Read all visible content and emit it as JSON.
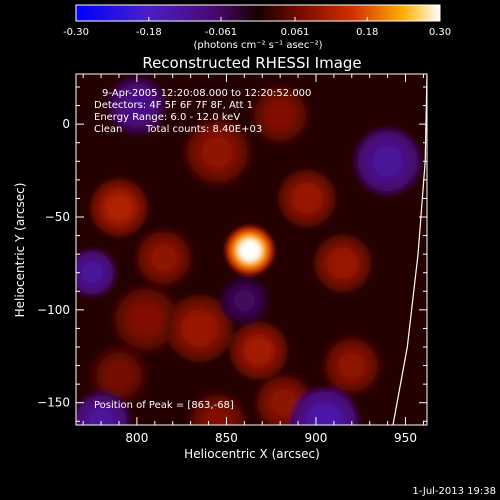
{
  "colorbar": {
    "tick_labels": [
      "-0.30",
      "-0.18",
      "-0.061",
      "0.061",
      "0.18",
      "0.30"
    ],
    "ticks": [
      -0.3,
      -0.18,
      -0.061,
      0.061,
      0.18,
      0.3
    ],
    "range": [
      -0.3,
      0.3
    ],
    "units": "(photons cm⁻² s⁻¹ asec⁻²)"
  },
  "chart_data": {
    "type": "heatmap",
    "title": "Reconstructed RHESSI Image",
    "xlabel": "Heliocentric X (arcsec)",
    "ylabel": "Heliocentric Y (arcsec)",
    "xlim": [
      766,
      962
    ],
    "ylim": [
      -162,
      27
    ],
    "x_ticks": [
      800,
      850,
      900,
      950
    ],
    "y_ticks": [
      0,
      -50,
      -100,
      -150
    ],
    "peak": {
      "x": 863,
      "y": -68,
      "value": 0.3
    },
    "blobs": [
      {
        "x": 863,
        "y": -68,
        "value": 0.3,
        "r": 10
      },
      {
        "x": 790,
        "y": -45,
        "value": 0.12,
        "r": 12
      },
      {
        "x": 815,
        "y": -72,
        "value": 0.09,
        "r": 12
      },
      {
        "x": 805,
        "y": -105,
        "value": 0.08,
        "r": 14
      },
      {
        "x": 835,
        "y": -110,
        "value": 0.1,
        "r": 14
      },
      {
        "x": 868,
        "y": -122,
        "value": 0.11,
        "r": 12
      },
      {
        "x": 882,
        "y": -150,
        "value": 0.09,
        "r": 12
      },
      {
        "x": 895,
        "y": -40,
        "value": 0.1,
        "r": 12
      },
      {
        "x": 915,
        "y": -75,
        "value": 0.1,
        "r": 12
      },
      {
        "x": 920,
        "y": -130,
        "value": 0.09,
        "r": 12
      },
      {
        "x": 845,
        "y": -15,
        "value": 0.09,
        "r": 14
      },
      {
        "x": 880,
        "y": 5,
        "value": 0.08,
        "r": 12
      },
      {
        "x": 790,
        "y": -135,
        "value": 0.07,
        "r": 12
      },
      {
        "x": 845,
        "y": -160,
        "value": 0.08,
        "r": 12
      },
      {
        "x": 940,
        "y": -20,
        "value": -0.12,
        "r": 14
      },
      {
        "x": 800,
        "y": 10,
        "value": -0.1,
        "r": 12
      },
      {
        "x": 775,
        "y": -80,
        "value": -0.12,
        "r": 10
      },
      {
        "x": 905,
        "y": -160,
        "value": -0.14,
        "r": 14
      },
      {
        "x": 780,
        "y": -160,
        "value": -0.12,
        "r": 12
      },
      {
        "x": 860,
        "y": -95,
        "value": -0.06,
        "r": 10
      }
    ],
    "limb_curve": [
      [
        962,
        27
      ],
      [
        961,
        -20
      ],
      [
        957,
        -70
      ],
      [
        951,
        -120
      ],
      [
        943,
        -162
      ]
    ]
  },
  "info": {
    "line1": "9-Apr-2005 12:20:08.000 to 12:20:52.000",
    "line2": "Detectors: 4F 5F 6F 7F 8F, Att 1",
    "line3": "Energy Range: 6.0 - 12.0 keV",
    "line4_clean": "Clean",
    "line4_counts": "Total counts: 8.40E+03",
    "peak_label": "Position of Peak = [863,-68]"
  },
  "timestamp": "1-Jul-2013 19:38"
}
